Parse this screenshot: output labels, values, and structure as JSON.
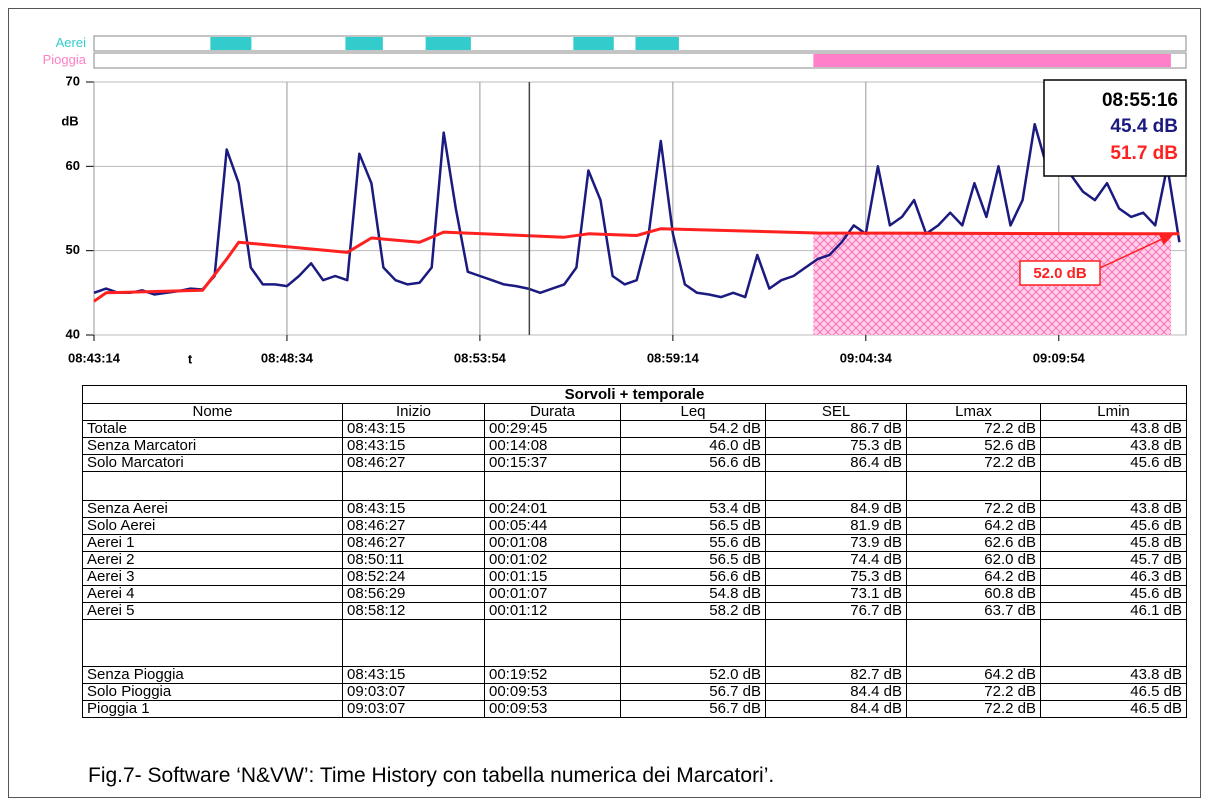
{
  "chart_data": {
    "type": "line",
    "y_label": "dB",
    "x_label": "t",
    "xlim": [
      "08:43:14",
      "09:13:25"
    ],
    "ylim": [
      40,
      70
    ],
    "xticks": [
      "08:43:14",
      "08:48:34",
      "08:53:54",
      "08:59:14",
      "09:04:34",
      "09:09:54"
    ],
    "yticks": [
      40,
      50,
      60,
      70
    ],
    "grid": true,
    "series": [
      {
        "color": "#1a1a80",
        "x": [
          "08:43:14",
          "08:43:34",
          "08:43:54",
          "08:44:14",
          "08:44:34",
          "08:44:54",
          "08:45:14",
          "08:45:34",
          "08:45:54",
          "08:46:14",
          "08:46:34",
          "08:46:54",
          "08:47:14",
          "08:47:34",
          "08:47:54",
          "08:48:14",
          "08:48:34",
          "08:48:54",
          "08:49:14",
          "08:49:34",
          "08:49:54",
          "08:50:14",
          "08:50:34",
          "08:50:54",
          "08:51:14",
          "08:51:34",
          "08:51:54",
          "08:52:14",
          "08:52:34",
          "08:52:54",
          "08:53:14",
          "08:53:34",
          "08:53:54",
          "08:54:14",
          "08:54:34",
          "08:54:54",
          "08:55:14",
          "08:55:34",
          "08:55:54",
          "08:56:14",
          "08:56:34",
          "08:56:54",
          "08:57:14",
          "08:57:34",
          "08:57:54",
          "08:58:14",
          "08:58:34",
          "08:58:54",
          "08:59:14",
          "08:59:34",
          "08:59:54",
          "09:00:14",
          "09:00:34",
          "09:00:54",
          "09:01:14",
          "09:01:34",
          "09:01:54",
          "09:02:14",
          "09:02:34",
          "09:02:54",
          "09:03:14",
          "09:03:34",
          "09:03:54",
          "09:04:14",
          "09:04:34",
          "09:04:54",
          "09:05:14",
          "09:05:34",
          "09:05:54",
          "09:06:14",
          "09:06:34",
          "09:06:54",
          "09:07:14",
          "09:07:34",
          "09:07:54",
          "09:08:14",
          "09:08:34",
          "09:08:54",
          "09:09:14",
          "09:09:34",
          "09:09:54",
          "09:10:14",
          "09:10:34",
          "09:10:54",
          "09:11:14",
          "09:11:34",
          "09:11:54",
          "09:12:14",
          "09:12:34",
          "09:12:54",
          "09:13:14"
        ],
        "values": [
          45,
          45.5,
          45,
          45,
          45.3,
          44.8,
          45,
          45.2,
          45.5,
          45.4,
          47,
          62,
          58,
          48,
          46,
          46,
          45.8,
          47,
          48.5,
          46.5,
          47,
          46.5,
          61.5,
          58,
          48,
          46.5,
          46,
          46.2,
          48,
          64,
          55,
          47.5,
          47,
          46.5,
          46,
          45.8,
          45.5,
          45,
          45.5,
          46,
          48,
          59.5,
          56,
          47,
          46,
          46.5,
          52,
          63,
          52,
          46,
          45,
          44.8,
          44.5,
          45,
          44.5,
          49.5,
          45.5,
          46.5,
          47,
          48,
          49,
          49.5,
          51,
          53,
          52,
          60,
          53,
          54,
          56,
          52,
          53,
          54.5,
          53,
          58,
          54,
          60,
          53,
          56,
          65,
          60,
          62,
          59,
          57,
          56,
          58,
          55,
          54,
          54.5,
          53,
          60,
          51
        ]
      },
      {
        "color": "#ff2020",
        "x": [
          "08:43:14",
          "08:43:34",
          "08:46:14",
          "08:46:54",
          "08:47:14",
          "08:50:14",
          "08:50:54",
          "08:52:14",
          "08:52:54",
          "08:56:14",
          "08:56:54",
          "08:58:14",
          "08:58:54",
          "09:03:14",
          "09:13:14"
        ],
        "values": [
          44,
          45,
          45.3,
          49,
          51,
          49.8,
          51.5,
          51,
          52.2,
          51.6,
          52,
          51.8,
          52.6,
          52.1,
          52
        ]
      }
    ],
    "markers": [
      {
        "name": "Aerei",
        "color": "#33cccc",
        "intervals": [
          {
            "start": "08:46:27",
            "end": "08:47:35"
          },
          {
            "start": "08:50:11",
            "end": "08:51:13"
          },
          {
            "start": "08:52:24",
            "end": "08:53:39"
          },
          {
            "start": "08:56:29",
            "end": "08:57:36"
          },
          {
            "start": "08:58:12",
            "end": "08:59:24"
          }
        ]
      },
      {
        "name": "Pioggia",
        "color": "#ff80c8",
        "intervals": [
          {
            "start": "09:03:07",
            "end": "09:13:00"
          }
        ]
      }
    ],
    "cursor": {
      "time": "08:55:16",
      "labels": [
        "45.4 dB",
        "51.7 dB"
      ]
    },
    "annotation": "52.0 dB"
  },
  "table": {
    "title": "Sorvoli + temporale",
    "columns": [
      "Nome",
      "Inizio",
      "Durata",
      "Leq",
      "SEL",
      "Lmax",
      "Lmin"
    ],
    "groups": [
      [
        [
          "Totale",
          "08:43:15",
          "00:29:45",
          "54.2 dB",
          "86.7 dB",
          "72.2 dB",
          "43.8 dB"
        ],
        [
          "Senza Marcatori",
          "08:43:15",
          "00:14:08",
          "46.0 dB",
          "75.3 dB",
          "52.6 dB",
          "43.8 dB"
        ],
        [
          "Solo Marcatori",
          "08:46:27",
          "00:15:37",
          "56.6 dB",
          "86.4 dB",
          "72.2 dB",
          "45.6 dB"
        ]
      ],
      [
        [
          "Senza Aerei",
          "08:43:15",
          "00:24:01",
          "53.4 dB",
          "84.9 dB",
          "72.2 dB",
          "43.8 dB"
        ],
        [
          "Solo Aerei",
          "08:46:27",
          "00:05:44",
          "56.5 dB",
          "81.9 dB",
          "64.2 dB",
          "45.6 dB"
        ],
        [
          "Aerei 1",
          "08:46:27",
          "00:01:08",
          "55.6 dB",
          "73.9 dB",
          "62.6 dB",
          "45.8 dB"
        ],
        [
          "Aerei 2",
          "08:50:11",
          "00:01:02",
          "56.5 dB",
          "74.4 dB",
          "62.0 dB",
          "45.7 dB"
        ],
        [
          "Aerei 3",
          "08:52:24",
          "00:01:15",
          "56.6 dB",
          "75.3 dB",
          "64.2 dB",
          "46.3 dB"
        ],
        [
          "Aerei 4",
          "08:56:29",
          "00:01:07",
          "54.8 dB",
          "73.1 dB",
          "60.8 dB",
          "45.6 dB"
        ],
        [
          "Aerei 5",
          "08:58:12",
          "00:01:12",
          "58.2 dB",
          "76.7 dB",
          "63.7 dB",
          "46.1 dB"
        ]
      ],
      [
        [
          "Senza Pioggia",
          "08:43:15",
          "00:19:52",
          "52.0 dB",
          "82.7 dB",
          "64.2 dB",
          "43.8 dB"
        ],
        [
          "Solo Pioggia",
          "09:03:07",
          "00:09:53",
          "56.7 dB",
          "84.4 dB",
          "72.2 dB",
          "46.5 dB"
        ],
        [
          "Pioggia 1",
          "09:03:07",
          "00:09:53",
          "56.7 dB",
          "84.4 dB",
          "72.2 dB",
          "46.5 dB"
        ]
      ]
    ]
  },
  "caption": "Fig.7- Software ‘N&VW’: Time History con tabella numerica dei Marcatori’."
}
